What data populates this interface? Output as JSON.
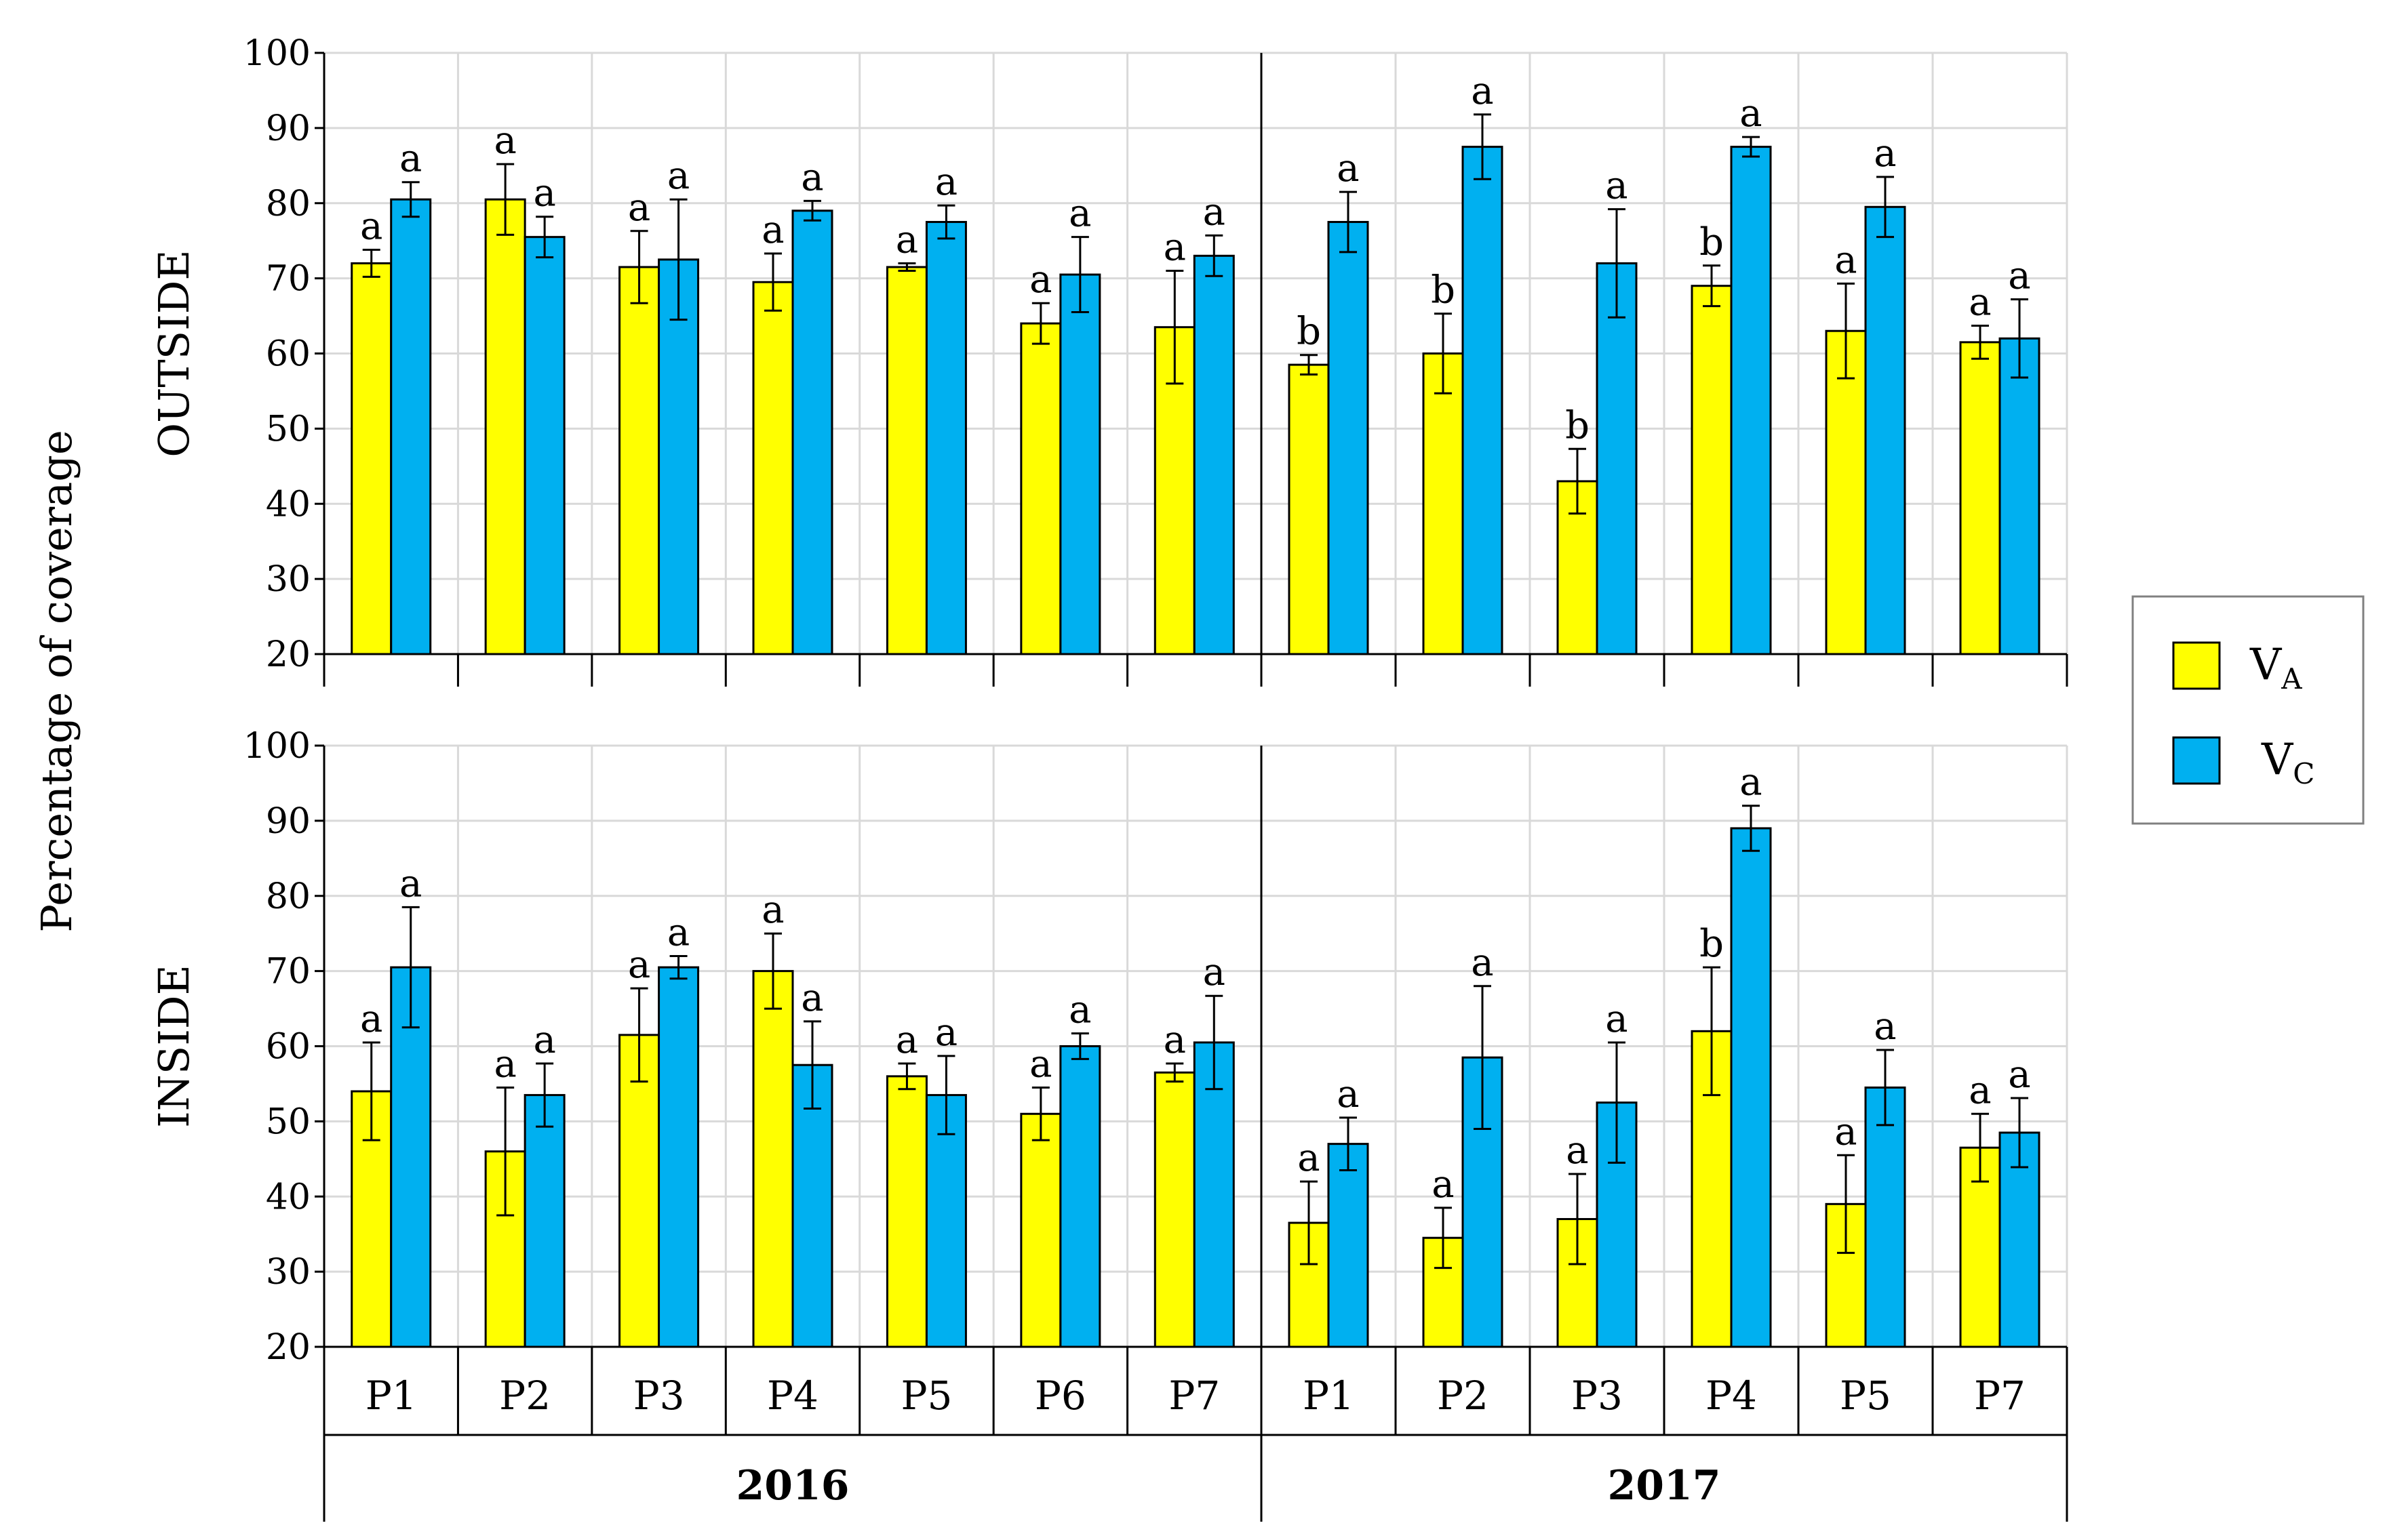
{
  "chart_data": {
    "type": "bar",
    "ylabel": "Percentage of coverage",
    "ylim": [
      20,
      100
    ],
    "yticks": [
      20,
      30,
      40,
      50,
      60,
      70,
      80,
      90,
      100
    ],
    "grid": true,
    "legend_position": "right",
    "legend": [
      {
        "key": "VA",
        "base": "V",
        "sub": "A",
        "color": "#ffff00"
      },
      {
        "key": "VC",
        "base": "V",
        "sub": "C",
        "color": "#00b0f0"
      }
    ],
    "groups": [
      {
        "year": "2016",
        "categories": [
          "P1",
          "P2",
          "P3",
          "P4",
          "P5",
          "P6",
          "P7"
        ]
      },
      {
        "year": "2017",
        "categories": [
          "P1",
          "P2",
          "P3",
          "P4",
          "P5",
          "P7"
        ]
      }
    ],
    "panels": [
      {
        "title": "OUTSIDE",
        "series": [
          {
            "name": "VA",
            "values": [
              72,
              80.5,
              71.5,
              69.5,
              71.5,
              64,
              63.5,
              58.5,
              60,
              43,
              69,
              63,
              61.5
            ],
            "errors": [
              1.8,
              4.7,
              4.8,
              3.8,
              0.5,
              2.7,
              7.5,
              1.3,
              5.3,
              4.3,
              2.7,
              6.3,
              2.2
            ],
            "labels": [
              "a",
              "a",
              "a",
              "a",
              "a",
              "a",
              "a",
              "b",
              "b",
              "b",
              "b",
              "a",
              "a"
            ]
          },
          {
            "name": "VC",
            "values": [
              80.5,
              75.5,
              72.5,
              79,
              77.5,
              70.5,
              73,
              77.5,
              87.5,
              72,
              87.5,
              79.5,
              62
            ],
            "errors": [
              2.3,
              2.7,
              8,
              1.3,
              2.2,
              5,
              2.7,
              4,
              4.3,
              7.2,
              1.3,
              4,
              5.2
            ],
            "labels": [
              "a",
              "a",
              "a",
              "a",
              "a",
              "a",
              "a",
              "a",
              "a",
              "a",
              "a",
              "a",
              "a"
            ]
          }
        ]
      },
      {
        "title": "INSIDE",
        "series": [
          {
            "name": "VA",
            "values": [
              54,
              46,
              61.5,
              70,
              56,
              51,
              56.5,
              36.5,
              34.5,
              37,
              62,
              39,
              46.5
            ],
            "errors": [
              6.5,
              8.5,
              6.2,
              5,
              1.7,
              3.5,
              1.2,
              5.5,
              4,
              6,
              8.5,
              6.5,
              4.5
            ],
            "labels": [
              "a",
              "a",
              "a",
              "a",
              "a",
              "a",
              "a",
              "a",
              "a",
              "a",
              "b",
              "a",
              "a"
            ]
          },
          {
            "name": "VC",
            "values": [
              70.5,
              53.5,
              70.5,
              57.5,
              53.5,
              60,
              60.5,
              47,
              58.5,
              52.5,
              89,
              54.5,
              48.5
            ],
            "errors": [
              8,
              4.2,
              1.5,
              5.8,
              5.2,
              1.7,
              6.2,
              3.5,
              9.5,
              8,
              3,
              5,
              4.6
            ],
            "labels": [
              "a",
              "a",
              "a",
              "a",
              "a",
              "a",
              "a",
              "a",
              "a",
              "a",
              "a",
              "a",
              "a"
            ]
          }
        ]
      }
    ]
  }
}
